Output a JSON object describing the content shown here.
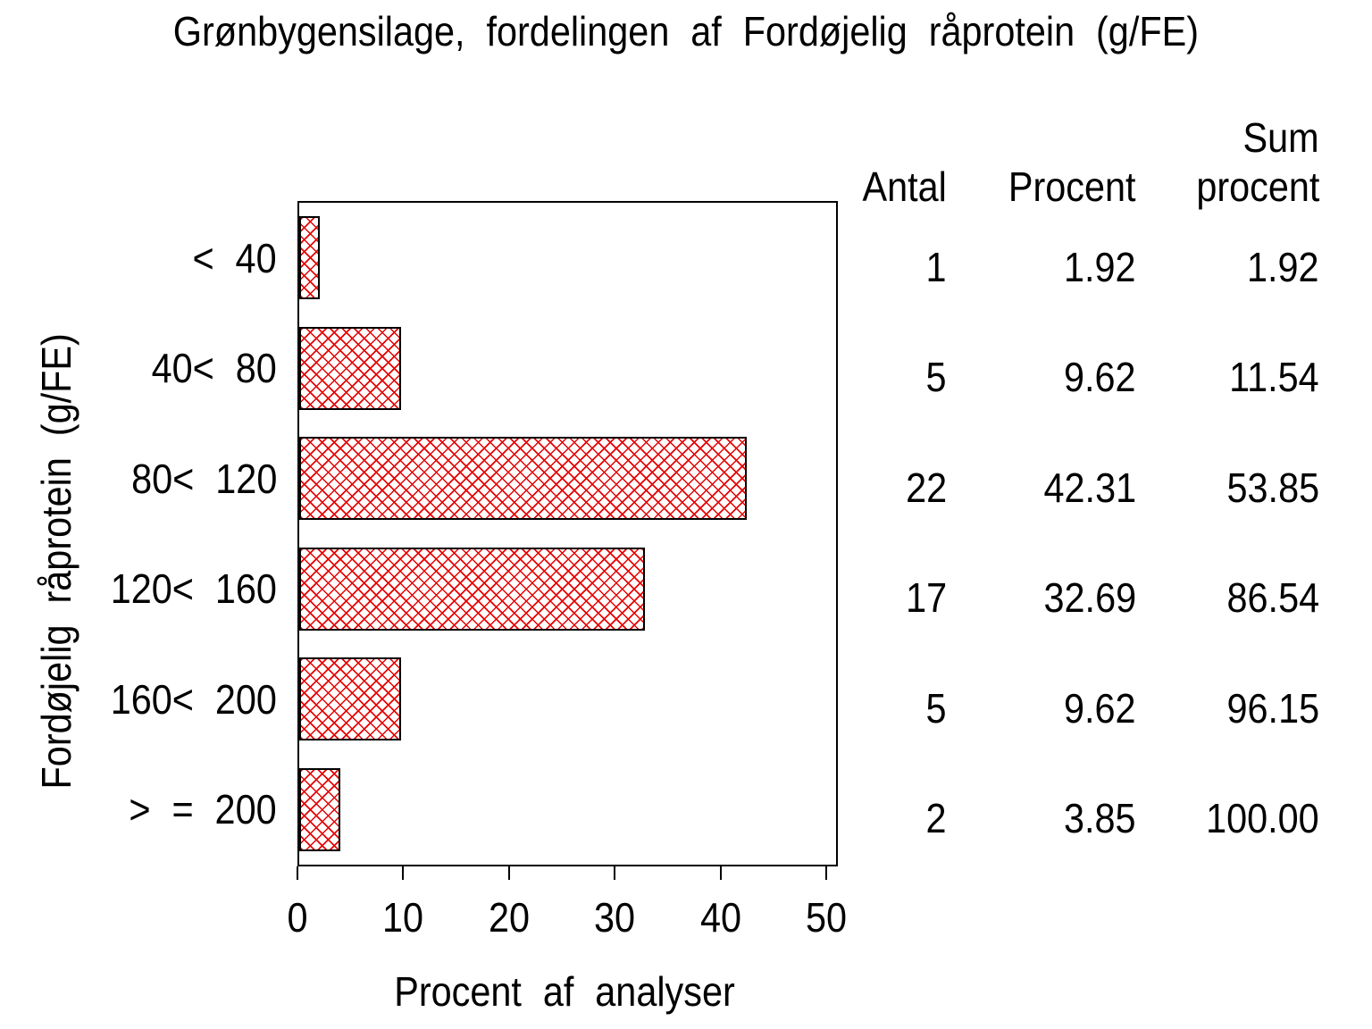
{
  "title": "Grønbygensilage, fordelingen af Fordøjelig råprotein (g/FE)",
  "chart_data": {
    "type": "bar",
    "orientation": "horizontal",
    "title": "Grønbygensilage, fordelingen af Fordøjelig råprotein (g/FE)",
    "xlabel": "Procent af analyser",
    "ylabel": "Fordøjelig råprotein (g/FE)",
    "categories": [
      "< 40",
      "40< 80",
      "80< 120",
      "120< 160",
      "160< 200",
      "> = 200"
    ],
    "values": [
      1.92,
      9.62,
      42.31,
      32.69,
      9.62,
      3.85
    ],
    "counts": [
      1,
      5,
      22,
      17,
      5,
      2
    ],
    "cumulative_percent": [
      1.92,
      11.54,
      53.85,
      86.54,
      96.15,
      100.0
    ],
    "xlim": [
      0,
      50
    ],
    "x_ticks": [
      "0",
      "10",
      "20",
      "30",
      "40",
      "50"
    ],
    "grid": false,
    "legend": "none",
    "bar_fill": "diagonal-crosshatch",
    "bar_color": "#e60000",
    "frame_color": "#000000"
  },
  "table": {
    "headers": {
      "antal": "Antal",
      "procent": "Procent",
      "sum_line1": "Sum",
      "sum_line2": "procent"
    },
    "rows": [
      {
        "antal": "1",
        "procent": "1.92",
        "sum": "1.92"
      },
      {
        "antal": "5",
        "procent": "9.62",
        "sum": "11.54"
      },
      {
        "antal": "22",
        "procent": "42.31",
        "sum": "53.85"
      },
      {
        "antal": "17",
        "procent": "32.69",
        "sum": "86.54"
      },
      {
        "antal": "5",
        "procent": "9.62",
        "sum": "96.15"
      },
      {
        "antal": "2",
        "procent": "3.85",
        "sum": "100.00"
      }
    ]
  }
}
